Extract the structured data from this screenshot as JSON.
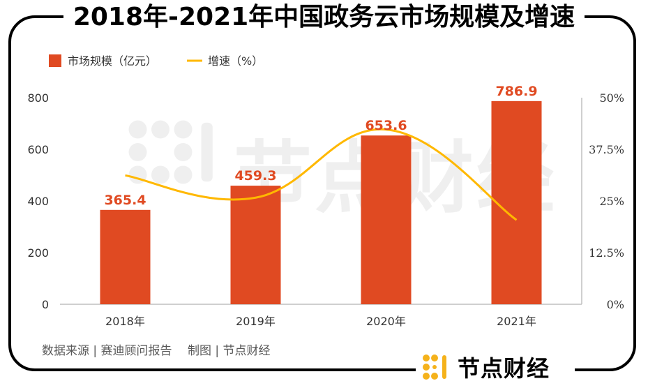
{
  "chart_data": {
    "type": "bar",
    "title": "2018年-2021年中国政务云市场规模及增速",
    "categories": [
      "2018年",
      "2019年",
      "2020年",
      "2021年"
    ],
    "series": [
      {
        "name": "市场规模（亿元）",
        "kind": "bar",
        "axis": "left",
        "values": [
          365.4,
          459.3,
          653.6,
          786.9
        ],
        "labels": [
          "365.4",
          "459.3",
          "653.6",
          "786.9"
        ]
      },
      {
        "name": "增速（%）",
        "kind": "line",
        "axis": "right",
        "values": [
          31.2,
          25.8,
          42.3,
          20.4
        ]
      }
    ],
    "ylim": [
      0,
      800
    ],
    "y_ticks": [
      "0",
      "200",
      "400",
      "600",
      "800"
    ],
    "y2lim": [
      0,
      50
    ],
    "y2_ticks": [
      "0%",
      "12.5%",
      "25%",
      "37.5%",
      "50%"
    ],
    "legend": [
      "市场规模（亿元）",
      "增速（%）"
    ],
    "legend_position": "top-left",
    "colors": {
      "bar": "#E04A22",
      "line": "#FFB800",
      "label": "#E04A22",
      "axis": "#bfbfbf",
      "text": "#333333"
    }
  },
  "source": "数据来源 | 赛迪顾问报告　 制图 | 节点财经",
  "brand": {
    "name": "节点财经"
  },
  "watermark": "节点财经"
}
